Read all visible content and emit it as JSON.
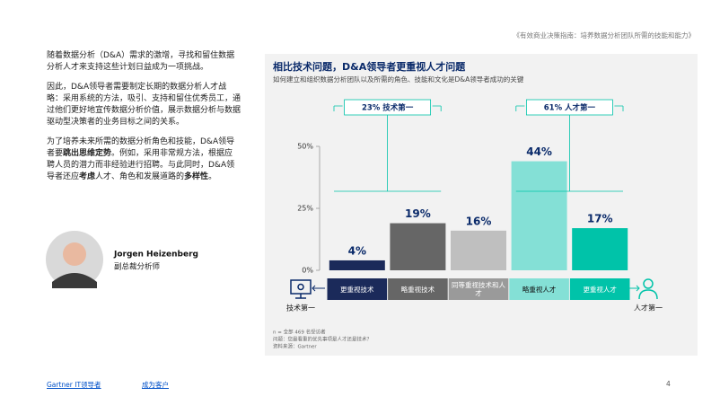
{
  "header": {
    "source_title": "《有效商业决策指南：培养数据分析团队所需的技能和能力》"
  },
  "body": {
    "paragraphs": [
      [
        {
          "text": "随着数据分析（D&A）需求的激增，寻找和留住数据分析人才来支持这些计划日益成为一项挑战。",
          "bold": false
        }
      ],
      [
        {
          "text": "因此，D&A领导者需要制定长期的数据分析人才战略：采用系统的方法，吸引、支持和留住优秀员工，通过他们更好地宣传数据分析价值，展示数据分析与数据驱动型决策者的业务目标之间的关系。",
          "bold": false
        }
      ],
      [
        {
          "text": "为了培养未来所需的数据分析角色和技能，D&A领导者要",
          "bold": false
        },
        {
          "text": "跳出思维定势",
          "bold": true
        },
        {
          "text": "。例如，采用非常规方法，根据应聘人员的潜力而非经验进行招聘。与此同时，D&A领导者还应",
          "bold": false
        },
        {
          "text": "考虑",
          "bold": true
        },
        {
          "text": "人才、角色和发展道路的",
          "bold": false
        },
        {
          "text": "多样性",
          "bold": true
        },
        {
          "text": "。",
          "bold": false
        }
      ]
    ]
  },
  "person": {
    "name": "Jorgen Heizenberg",
    "role": "副总裁分析师"
  },
  "chart_data": {
    "type": "bar",
    "title": "相比技术问题，D&A领导者更重视人才问题",
    "subtitle": "如何建立和组织数据分析团队以及所需的角色、技能和文化是D&A领导者成功的关键",
    "categories": [
      "更重视技术",
      "略重视技术",
      "同等重视技术和人才",
      "略重视人才",
      "更重视人才"
    ],
    "values": [
      4,
      19,
      16,
      44,
      17
    ],
    "value_labels": [
      "4%",
      "19%",
      "16%",
      "44%",
      "17%"
    ],
    "colors": [
      "#1b2a5a",
      "#666666",
      "#bfbfbf",
      "#84e0d6",
      "#00c3a9"
    ],
    "ylim": [
      0,
      50
    ],
    "yticks": [
      {
        "value": 0,
        "label": "0%"
      },
      {
        "value": 25,
        "label": "25%"
      },
      {
        "value": 50,
        "label": "50%"
      }
    ],
    "callouts": [
      "23% 技术第一",
      "61% 人才第一"
    ],
    "end_labels": [
      "技术第一",
      "人才第一"
    ],
    "notes": [
      "n = 全部 469 名受访者",
      "问题：您最看重的优先事项是人才还是技术？",
      "资料来源：Gartner"
    ]
  },
  "footer": {
    "links": [
      "Gartner IT领导者",
      "成为客户"
    ],
    "page": "4"
  }
}
